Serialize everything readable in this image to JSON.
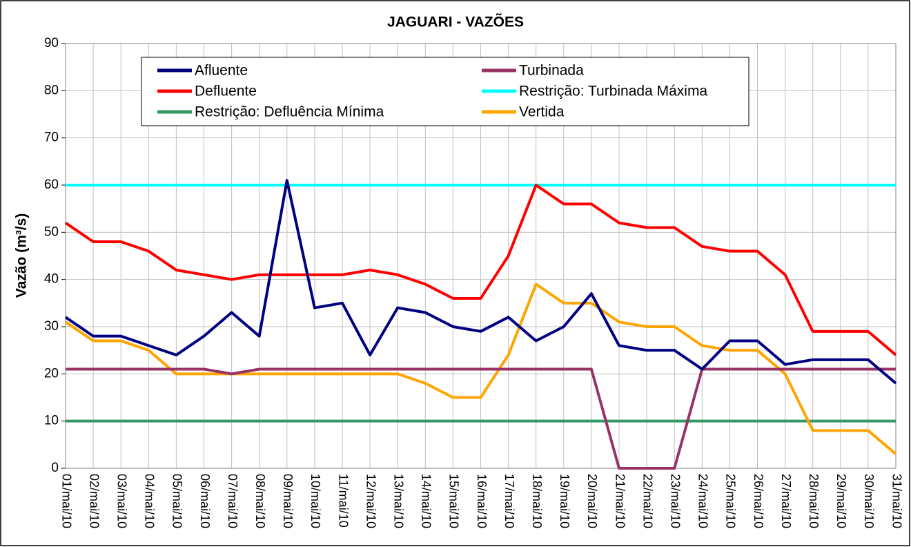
{
  "chart_data": {
    "type": "line",
    "title": "JAGUARI - VAZÕES",
    "y_label": "Vazão (m³/s)",
    "categories": [
      "01/mai/10",
      "02/mai/10",
      "03/mai/10",
      "04/mai/10",
      "05/mai/10",
      "06/mai/10",
      "07/mai/10",
      "08/mai/10",
      "09/mai/10",
      "10/mai/10",
      "11/mai/10",
      "12/mai/10",
      "13/mai/10",
      "14/mai/10",
      "15/mai/10",
      "16/mai/10",
      "17/mai/10",
      "18/mai/10",
      "19/mai/10",
      "20/mai/10",
      "21/mai/10",
      "22/mai/10",
      "23/mai/10",
      "24/mai/10",
      "25/mai/10",
      "26/mai/10",
      "27/mai/10",
      "28/mai/10",
      "29/mai/10",
      "30/mai/10",
      "31/mai/10"
    ],
    "series": [
      {
        "name": "Afluente",
        "color": "#000080",
        "values": [
          32,
          28,
          28,
          26,
          24,
          28,
          33,
          28,
          61,
          34,
          35,
          24,
          34,
          33,
          30,
          29,
          32,
          27,
          30,
          37,
          26,
          25,
          25,
          21,
          27,
          27,
          22,
          23,
          23,
          23,
          18
        ]
      },
      {
        "name": "Turbinada",
        "color": "#993366",
        "values": [
          21,
          21,
          21,
          21,
          21,
          21,
          20,
          21,
          21,
          21,
          21,
          21,
          21,
          21,
          21,
          21,
          21,
          21,
          21,
          21,
          0,
          0,
          0,
          21,
          21,
          21,
          21,
          21,
          21,
          21,
          21
        ]
      },
      {
        "name": "Defluente",
        "color": "#ff0000",
        "values": [
          52,
          48,
          48,
          46,
          42,
          41,
          40,
          41,
          41,
          41,
          41,
          42,
          41,
          39,
          36,
          36,
          45,
          60,
          56,
          56,
          52,
          51,
          51,
          47,
          46,
          46,
          41,
          29,
          29,
          29,
          24
        ]
      },
      {
        "name": "Restrição: Turbinada Máxima",
        "color": "#00ffff",
        "values": [
          60,
          60,
          60,
          60,
          60,
          60,
          60,
          60,
          60,
          60,
          60,
          60,
          60,
          60,
          60,
          60,
          60,
          60,
          60,
          60,
          60,
          60,
          60,
          60,
          60,
          60,
          60,
          60,
          60,
          60,
          60
        ]
      },
      {
        "name": "Restrição: Defluência Mínima",
        "color": "#339966",
        "values": [
          10,
          10,
          10,
          10,
          10,
          10,
          10,
          10,
          10,
          10,
          10,
          10,
          10,
          10,
          10,
          10,
          10,
          10,
          10,
          10,
          10,
          10,
          10,
          10,
          10,
          10,
          10,
          10,
          10,
          10,
          10
        ]
      },
      {
        "name": "Vertida",
        "color": "#ffa500",
        "values": [
          31,
          27,
          27,
          25,
          20,
          20,
          20,
          20,
          20,
          20,
          20,
          20,
          20,
          18,
          15,
          15,
          24,
          39,
          35,
          35,
          31,
          30,
          30,
          26,
          25,
          25,
          20,
          8,
          8,
          8,
          3
        ]
      }
    ],
    "ylim": [
      0,
      90
    ],
    "yticks": [
      0,
      10,
      20,
      30,
      40,
      50,
      60,
      70,
      80,
      90
    ],
    "grid": true
  }
}
